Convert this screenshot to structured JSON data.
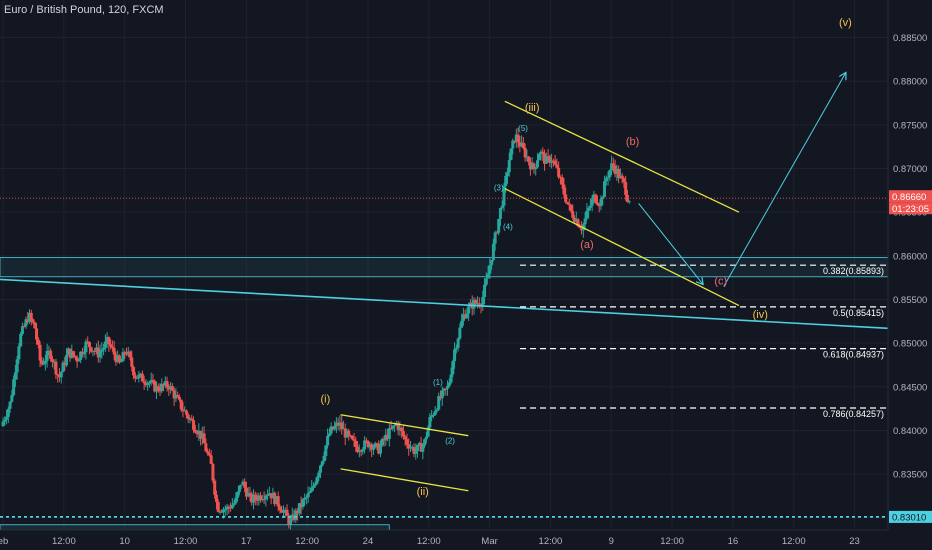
{
  "header": {
    "title": "Euro / British Pound, 120, FXCM"
  },
  "colors": {
    "background": "#131722",
    "up": "#26a69a",
    "down": "#ef5350",
    "axis_text": "#b2b5be",
    "yellow": "#e8e541",
    "cyan": "#4dd0e1",
    "orange_label": "#f6c14e",
    "red_label": "#f06a6a"
  },
  "chart_data": {
    "type": "candlestick",
    "title": "Euro / British Pound, 120, FXCM",
    "yticks": [
      "0.88500",
      "0.88000",
      "0.87500",
      "0.87000",
      "0.86500",
      "0.86000",
      "0.85500",
      "0.85000",
      "0.84500",
      "0.84000",
      "0.83500",
      "0.83000"
    ],
    "ytick_values": [
      0.885,
      0.88,
      0.875,
      0.87,
      0.865,
      0.86,
      0.855,
      0.85,
      0.845,
      0.84,
      0.835,
      0.83
    ],
    "ylim": [
      0.8286,
      0.8893
    ],
    "xticks": [
      "eb",
      "12:00",
      "10",
      "12:00",
      "17",
      "12:00",
      "24",
      "12:00",
      "Mar",
      "12:00",
      "9",
      "12:00",
      "16",
      "12:00",
      "23"
    ],
    "xtick_positions": [
      0,
      2,
      4,
      6,
      8,
      10,
      12,
      14,
      16,
      18,
      20,
      22,
      24,
      26,
      28
    ],
    "xlim": [
      -0.1,
      29.1
    ],
    "current_price": {
      "label": "0.86660",
      "value": 0.8666,
      "countdown": "01:23:05"
    },
    "support_price": {
      "label": "0.83010",
      "value": 0.8301
    },
    "price_path": [
      [
        0.0,
        0.8405
      ],
      [
        0.3,
        0.8432
      ],
      [
        0.6,
        0.8505
      ],
      [
        0.9,
        0.8532
      ],
      [
        1.1,
        0.8518
      ],
      [
        1.3,
        0.8475
      ],
      [
        1.6,
        0.849
      ],
      [
        1.9,
        0.846
      ],
      [
        2.2,
        0.849
      ],
      [
        2.5,
        0.8482
      ],
      [
        2.8,
        0.85
      ],
      [
        3.2,
        0.8488
      ],
      [
        3.5,
        0.8502
      ],
      [
        3.9,
        0.8475
      ],
      [
        4.1,
        0.8493
      ],
      [
        4.4,
        0.8463
      ],
      [
        4.8,
        0.8457
      ],
      [
        5.1,
        0.8448
      ],
      [
        5.5,
        0.8452
      ],
      [
        5.9,
        0.8428
      ],
      [
        6.3,
        0.8408
      ],
      [
        6.6,
        0.8392
      ],
      [
        6.9,
        0.836
      ],
      [
        7.1,
        0.8312
      ],
      [
        7.4,
        0.831
      ],
      [
        7.7,
        0.8318
      ],
      [
        7.9,
        0.8342
      ],
      [
        8.2,
        0.832
      ],
      [
        8.5,
        0.8325
      ],
      [
        8.8,
        0.833
      ],
      [
        9.2,
        0.8312
      ],
      [
        9.5,
        0.8294
      ],
      [
        9.9,
        0.8317
      ],
      [
        10.2,
        0.833
      ],
      [
        10.5,
        0.8362
      ],
      [
        10.8,
        0.8398
      ],
      [
        11.1,
        0.8408
      ],
      [
        11.4,
        0.8392
      ],
      [
        11.7,
        0.838
      ],
      [
        12.1,
        0.8386
      ],
      [
        12.4,
        0.8378
      ],
      [
        12.7,
        0.8395
      ],
      [
        13.0,
        0.8408
      ],
      [
        13.3,
        0.8388
      ],
      [
        13.6,
        0.8376
      ],
      [
        13.9,
        0.8384
      ],
      [
        14.1,
        0.8413
      ],
      [
        14.4,
        0.8435
      ],
      [
        14.7,
        0.845
      ],
      [
        14.9,
        0.8492
      ],
      [
        15.2,
        0.8532
      ],
      [
        15.5,
        0.8545
      ],
      [
        15.8,
        0.8548
      ],
      [
        16.0,
        0.8578
      ],
      [
        16.3,
        0.8632
      ],
      [
        16.5,
        0.8668
      ],
      [
        16.7,
        0.871
      ],
      [
        16.9,
        0.8738
      ],
      [
        17.1,
        0.8725
      ],
      [
        17.3,
        0.8712
      ],
      [
        17.5,
        0.8698
      ],
      [
        17.7,
        0.872
      ],
      [
        17.9,
        0.8708
      ],
      [
        18.1,
        0.8712
      ],
      [
        18.3,
        0.8695
      ],
      [
        18.5,
        0.8672
      ],
      [
        18.7,
        0.8652
      ],
      [
        18.9,
        0.8642
      ],
      [
        19.1,
        0.8632
      ],
      [
        19.3,
        0.8652
      ],
      [
        19.5,
        0.8668
      ],
      [
        19.7,
        0.866
      ],
      [
        19.9,
        0.869
      ],
      [
        20.1,
        0.8705
      ],
      [
        20.3,
        0.8692
      ],
      [
        20.5,
        0.868
      ],
      [
        20.6,
        0.8666
      ]
    ],
    "wave_labels": [
      {
        "text": "(v)",
        "x": 27.7,
        "y": 0.8863,
        "color": "orange_label"
      },
      {
        "text": "(iii)",
        "x": 17.4,
        "y": 0.8766,
        "color": "orange_label"
      },
      {
        "text": "(b)",
        "x": 20.7,
        "y": 0.8727,
        "color": "red_label"
      },
      {
        "text": "(5)",
        "x": 17.1,
        "y": 0.8743,
        "color": "cyan"
      },
      {
        "text": "(3)",
        "x": 16.3,
        "y": 0.8675,
        "color": "cyan"
      },
      {
        "text": "(4)",
        "x": 16.6,
        "y": 0.863,
        "color": "cyan"
      },
      {
        "text": "(a)",
        "x": 19.2,
        "y": 0.8609,
        "color": "red_label"
      },
      {
        "text": "(c)",
        "x": 23.6,
        "y": 0.8567,
        "color": "red_label"
      },
      {
        "text": "(iv)",
        "x": 24.9,
        "y": 0.8529,
        "color": "orange_label"
      },
      {
        "text": "(i)",
        "x": 10.6,
        "y": 0.8432,
        "color": "orange_label"
      },
      {
        "text": "(1)",
        "x": 14.3,
        "y": 0.8452,
        "color": "cyan"
      },
      {
        "text": "(2)",
        "x": 14.7,
        "y": 0.8385,
        "color": "cyan"
      },
      {
        "text": "(ii)",
        "x": 13.8,
        "y": 0.8326,
        "color": "orange_label"
      }
    ],
    "fib_levels": [
      {
        "label": "0.382(0.85893)",
        "value": 0.85893
      },
      {
        "label": "0.5(0.85415)",
        "value": 0.85415
      },
      {
        "label": "0.618(0.84937)",
        "value": 0.84937
      },
      {
        "label": "0.786(0.84257)",
        "value": 0.84257
      }
    ],
    "fib_range": [
      17.0,
      29.5
    ],
    "channels": [
      {
        "name": "upper-channel-line",
        "color": "yellow",
        "points": [
          [
            16.5,
            0.8777
          ],
          [
            24.2,
            0.865
          ]
        ]
      },
      {
        "name": "lower-channel-line",
        "color": "yellow",
        "points": [
          [
            16.5,
            0.8677
          ],
          [
            24.2,
            0.8543
          ]
        ]
      },
      {
        "name": "small-channel-upper",
        "color": "yellow",
        "points": [
          [
            11.1,
            0.8418
          ],
          [
            15.3,
            0.8394
          ]
        ]
      },
      {
        "name": "small-channel-lower",
        "color": "yellow",
        "points": [
          [
            11.1,
            0.8356
          ],
          [
            15.3,
            0.8331
          ]
        ]
      }
    ],
    "trendline": {
      "points": [
        [
          -0.1,
          0.8573
        ],
        [
          29.1,
          0.8517
        ]
      ],
      "color": "cyan"
    },
    "zones": [
      {
        "y1": 0.8598,
        "y2": 0.8576,
        "x1": -0.1,
        "x2": 29.1
      }
    ],
    "bottom_box": {
      "y1": 0.8292,
      "y2": 0.8283,
      "x1": -0.1,
      "x2": 12.7
    },
    "projection_arrows": [
      {
        "points": [
          [
            20.9,
            0.866
          ],
          [
            23.0,
            0.8568
          ]
        ]
      },
      {
        "points": [
          [
            23.7,
            0.8565
          ],
          [
            27.7,
            0.8809
          ]
        ]
      }
    ]
  }
}
